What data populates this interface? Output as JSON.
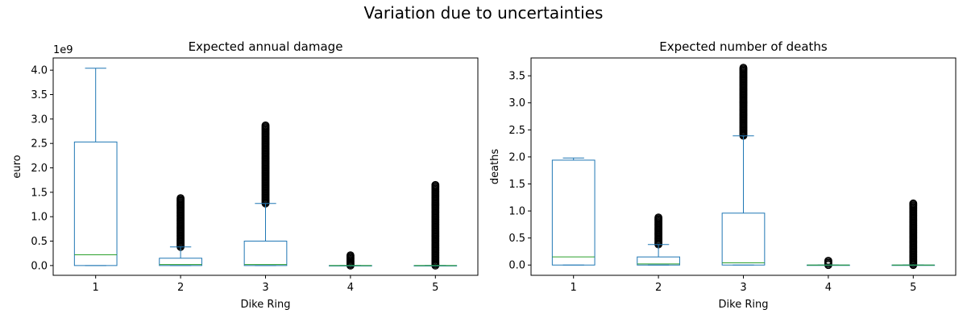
{
  "figure": {
    "title": "Variation due to uncertainties"
  },
  "chart_data": [
    {
      "type": "box",
      "title": "Expected annual damage",
      "xlabel": "Dike Ring",
      "ylabel": "euro",
      "offset_text": "1e9",
      "categories": [
        "1",
        "2",
        "3",
        "4",
        "5"
      ],
      "ylim": [
        -0.2,
        4.25
      ],
      "yticks": [
        0.0,
        0.5,
        1.0,
        1.5,
        2.0,
        2.5,
        3.0,
        3.5,
        4.0
      ],
      "ytick_labels": [
        "0.0",
        "0.5",
        "1.0",
        "1.5",
        "2.0",
        "2.5",
        "3.0",
        "3.5",
        "4.0"
      ],
      "box_color": "#1f77b4",
      "median_color": "#2ca02c",
      "flier_color": "#000000",
      "boxes": [
        {
          "q1": 0.0,
          "median": 0.22,
          "q3": 2.53,
          "whisker_low": 0.0,
          "whisker_high": 4.04,
          "flier_low": null,
          "flier_high": null
        },
        {
          "q1": 0.0,
          "median": 0.02,
          "q3": 0.15,
          "whisker_low": 0.0,
          "whisker_high": 0.38,
          "flier_low": 0.38,
          "flier_high": 1.38
        },
        {
          "q1": 0.0,
          "median": 0.02,
          "q3": 0.5,
          "whisker_low": 0.0,
          "whisker_high": 1.27,
          "flier_low": 1.27,
          "flier_high": 2.87
        },
        {
          "q1": 0.0,
          "median": 0.0,
          "q3": 0.0,
          "whisker_low": 0.0,
          "whisker_high": 0.0,
          "flier_low": 0.0,
          "flier_high": 0.21
        },
        {
          "q1": 0.0,
          "median": 0.0,
          "q3": 0.0,
          "whisker_low": 0.0,
          "whisker_high": 0.0,
          "flier_low": 0.0,
          "flier_high": 1.65
        }
      ]
    },
    {
      "type": "box",
      "title": "Expected number of deaths",
      "xlabel": "Dike Ring",
      "ylabel": "deaths",
      "offset_text": "",
      "categories": [
        "1",
        "2",
        "3",
        "4",
        "5"
      ],
      "ylim": [
        -0.19,
        3.83
      ],
      "yticks": [
        0.0,
        0.5,
        1.0,
        1.5,
        2.0,
        2.5,
        3.0,
        3.5
      ],
      "ytick_labels": [
        "0.0",
        "0.5",
        "1.0",
        "1.5",
        "2.0",
        "2.5",
        "3.0",
        "3.5"
      ],
      "box_color": "#1f77b4",
      "median_color": "#2ca02c",
      "flier_color": "#000000",
      "boxes": [
        {
          "q1": 0.0,
          "median": 0.15,
          "q3": 1.94,
          "whisker_low": 0.0,
          "whisker_high": 1.98,
          "flier_low": null,
          "flier_high": null
        },
        {
          "q1": 0.0,
          "median": 0.02,
          "q3": 0.15,
          "whisker_low": 0.0,
          "whisker_high": 0.38,
          "flier_low": 0.38,
          "flier_high": 0.88
        },
        {
          "q1": 0.0,
          "median": 0.04,
          "q3": 0.96,
          "whisker_low": 0.0,
          "whisker_high": 2.39,
          "flier_low": 2.39,
          "flier_high": 3.65
        },
        {
          "q1": 0.0,
          "median": 0.0,
          "q3": 0.0,
          "whisker_low": 0.0,
          "whisker_high": 0.0,
          "flier_low": 0.0,
          "flier_high": 0.08
        },
        {
          "q1": 0.0,
          "median": 0.0,
          "q3": 0.0,
          "whisker_low": 0.0,
          "whisker_high": 0.0,
          "flier_low": 0.0,
          "flier_high": 1.14
        }
      ]
    }
  ]
}
